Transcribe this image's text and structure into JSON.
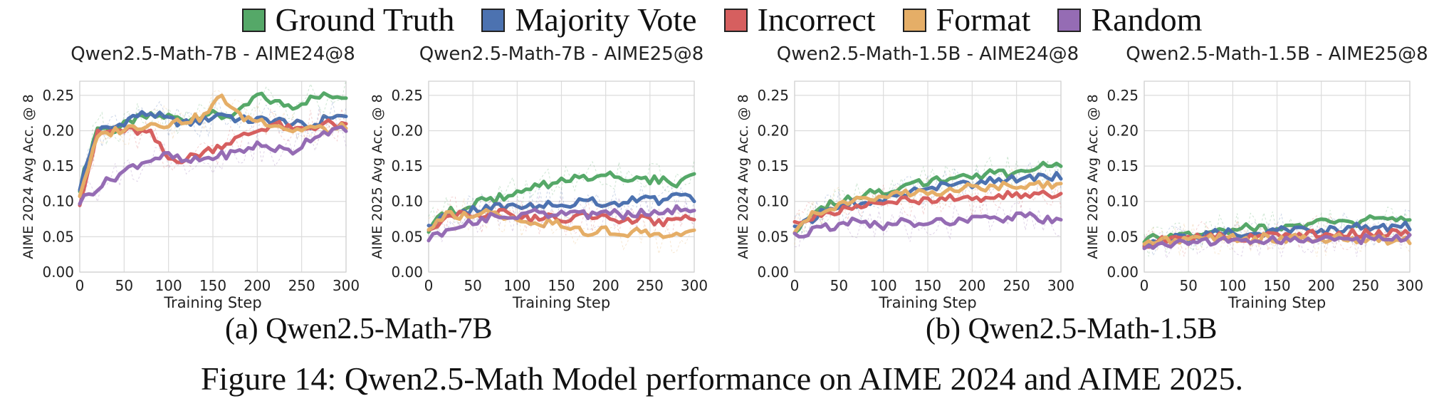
{
  "legend": [
    {
      "label": "Ground Truth",
      "color": "#55a868"
    },
    {
      "label": "Majority Vote",
      "color": "#4c72b0"
    },
    {
      "label": "Incorrect",
      "color": "#d65f5f"
    },
    {
      "label": "Format",
      "color": "#e5ae67"
    },
    {
      "label": "Random",
      "color": "#956cb4"
    }
  ],
  "subcaptions": {
    "a": "(a) Qwen2.5-Math-7B",
    "b": "(b) Qwen2.5-Math-1.5B"
  },
  "figure_caption": "Figure 14: Qwen2.5-Math Model performance on AIME 2024 and AIME 2025.",
  "chart_data": [
    {
      "type": "line",
      "title": "Qwen2.5-Math-7B - AIME24@8",
      "xlabel": "Training Step",
      "ylabel": "AIME 2024 Avg Acc. @ 8",
      "xlim": [
        0,
        300
      ],
      "ylim": [
        0,
        0.27
      ],
      "xticks": [
        0,
        50,
        100,
        150,
        200,
        250,
        300
      ],
      "yticks": [
        "0.00",
        "0.05",
        "0.10",
        "0.15",
        "0.20",
        "0.25"
      ],
      "grid": true,
      "x": [
        0,
        20,
        40,
        60,
        80,
        100,
        120,
        140,
        160,
        180,
        200,
        220,
        240,
        260,
        280,
        300
      ],
      "series": [
        {
          "name": "Ground Truth",
          "values": [
            0.12,
            0.205,
            0.2,
            0.215,
            0.22,
            0.22,
            0.215,
            0.225,
            0.22,
            0.225,
            0.25,
            0.24,
            0.235,
            0.245,
            0.25,
            0.25
          ]
        },
        {
          "name": "Majority Vote",
          "values": [
            0.12,
            0.2,
            0.205,
            0.22,
            0.225,
            0.215,
            0.21,
            0.215,
            0.225,
            0.215,
            0.215,
            0.215,
            0.21,
            0.205,
            0.22,
            0.22
          ]
        },
        {
          "name": "Incorrect",
          "values": [
            0.1,
            0.195,
            0.2,
            0.2,
            0.195,
            0.16,
            0.16,
            0.17,
            0.18,
            0.19,
            0.2,
            0.21,
            0.2,
            0.205,
            0.21,
            0.205
          ]
        },
        {
          "name": "Format",
          "values": [
            0.11,
            0.19,
            0.2,
            0.205,
            0.21,
            0.21,
            0.215,
            0.22,
            0.25,
            0.22,
            0.215,
            0.21,
            0.2,
            0.205,
            0.2,
            0.205
          ]
        },
        {
          "name": "Random",
          "values": [
            0.1,
            0.12,
            0.135,
            0.15,
            0.16,
            0.165,
            0.155,
            0.16,
            0.165,
            0.17,
            0.18,
            0.175,
            0.17,
            0.19,
            0.2,
            0.2
          ]
        }
      ]
    },
    {
      "type": "line",
      "title": "Qwen2.5-Math-7B - AIME25@8",
      "xlabel": "Training Step",
      "ylabel": "AIME 2025 Avg Acc. @ 8",
      "xlim": [
        0,
        300
      ],
      "ylim": [
        0,
        0.27
      ],
      "xticks": [
        0,
        50,
        100,
        150,
        200,
        250,
        300
      ],
      "yticks": [
        "0.00",
        "0.05",
        "0.10",
        "0.15",
        "0.20",
        "0.25"
      ],
      "grid": true,
      "x": [
        0,
        20,
        40,
        60,
        80,
        100,
        120,
        140,
        160,
        180,
        200,
        220,
        240,
        260,
        280,
        300
      ],
      "series": [
        {
          "name": "Ground Truth",
          "values": [
            0.06,
            0.085,
            0.09,
            0.1,
            0.105,
            0.11,
            0.12,
            0.125,
            0.13,
            0.135,
            0.14,
            0.135,
            0.13,
            0.13,
            0.125,
            0.135
          ]
        },
        {
          "name": "Majority Vote",
          "values": [
            0.06,
            0.08,
            0.085,
            0.09,
            0.095,
            0.09,
            0.095,
            0.1,
            0.095,
            0.1,
            0.095,
            0.1,
            0.105,
            0.1,
            0.11,
            0.1
          ]
        },
        {
          "name": "Incorrect",
          "values": [
            0.06,
            0.08,
            0.085,
            0.08,
            0.085,
            0.08,
            0.075,
            0.08,
            0.075,
            0.08,
            0.075,
            0.07,
            0.075,
            0.07,
            0.075,
            0.08
          ]
        },
        {
          "name": "Format",
          "values": [
            0.06,
            0.08,
            0.08,
            0.085,
            0.08,
            0.075,
            0.07,
            0.07,
            0.06,
            0.055,
            0.06,
            0.055,
            0.06,
            0.05,
            0.05,
            0.065
          ]
        },
        {
          "name": "Random",
          "values": [
            0.045,
            0.06,
            0.07,
            0.075,
            0.08,
            0.08,
            0.085,
            0.08,
            0.085,
            0.08,
            0.085,
            0.08,
            0.085,
            0.08,
            0.09,
            0.085
          ]
        }
      ]
    },
    {
      "type": "line",
      "title": "Qwen2.5-Math-1.5B - AIME24@8",
      "xlabel": "Training Step",
      "ylabel": "AIME 2024 Avg Acc. @ 8",
      "xlim": [
        0,
        300
      ],
      "ylim": [
        0,
        0.27
      ],
      "xticks": [
        0,
        50,
        100,
        150,
        200,
        250,
        300
      ],
      "yticks": [
        "0.00",
        "0.05",
        "0.10",
        "0.15",
        "0.20",
        "0.25"
      ],
      "grid": true,
      "x": [
        0,
        20,
        40,
        60,
        80,
        100,
        120,
        140,
        160,
        180,
        200,
        220,
        240,
        260,
        280,
        300
      ],
      "series": [
        {
          "name": "Ground Truth",
          "values": [
            0.06,
            0.08,
            0.095,
            0.105,
            0.11,
            0.115,
            0.12,
            0.125,
            0.13,
            0.13,
            0.135,
            0.14,
            0.14,
            0.145,
            0.15,
            0.15
          ]
        },
        {
          "name": "Majority Vote",
          "values": [
            0.06,
            0.075,
            0.09,
            0.095,
            0.1,
            0.105,
            0.11,
            0.115,
            0.12,
            0.125,
            0.125,
            0.13,
            0.13,
            0.135,
            0.135,
            0.135
          ]
        },
        {
          "name": "Incorrect",
          "values": [
            0.07,
            0.075,
            0.085,
            0.09,
            0.095,
            0.1,
            0.1,
            0.1,
            0.105,
            0.105,
            0.1,
            0.105,
            0.11,
            0.105,
            0.11,
            0.11
          ]
        },
        {
          "name": "Format",
          "values": [
            0.06,
            0.085,
            0.09,
            0.1,
            0.105,
            0.11,
            0.11,
            0.115,
            0.115,
            0.115,
            0.12,
            0.12,
            0.125,
            0.12,
            0.125,
            0.125
          ]
        },
        {
          "name": "Random",
          "values": [
            0.05,
            0.06,
            0.065,
            0.07,
            0.07,
            0.065,
            0.07,
            0.065,
            0.07,
            0.07,
            0.075,
            0.08,
            0.075,
            0.08,
            0.075,
            0.07
          ]
        }
      ]
    },
    {
      "type": "line",
      "title": "Qwen2.5-Math-1.5B - AIME25@8",
      "xlabel": "Training Step",
      "ylabel": "AIME 2025 Avg Acc. @ 8",
      "xlim": [
        0,
        300
      ],
      "ylim": [
        0,
        0.27
      ],
      "xticks": [
        0,
        50,
        100,
        150,
        200,
        250,
        300
      ],
      "yticks": [
        "0.00",
        "0.05",
        "0.10",
        "0.15",
        "0.20",
        "0.25"
      ],
      "grid": true,
      "x": [
        0,
        20,
        40,
        60,
        80,
        100,
        120,
        140,
        160,
        180,
        200,
        220,
        240,
        260,
        280,
        300
      ],
      "series": [
        {
          "name": "Ground Truth",
          "values": [
            0.045,
            0.05,
            0.055,
            0.055,
            0.06,
            0.06,
            0.065,
            0.06,
            0.065,
            0.065,
            0.07,
            0.07,
            0.07,
            0.075,
            0.075,
            0.07
          ]
        },
        {
          "name": "Majority Vote",
          "values": [
            0.04,
            0.045,
            0.05,
            0.05,
            0.055,
            0.055,
            0.055,
            0.055,
            0.06,
            0.06,
            0.06,
            0.06,
            0.065,
            0.06,
            0.065,
            0.065
          ]
        },
        {
          "name": "Incorrect",
          "values": [
            0.04,
            0.045,
            0.045,
            0.05,
            0.05,
            0.05,
            0.05,
            0.055,
            0.05,
            0.055,
            0.055,
            0.055,
            0.055,
            0.055,
            0.055,
            0.055
          ]
        },
        {
          "name": "Format",
          "values": [
            0.04,
            0.045,
            0.045,
            0.045,
            0.05,
            0.05,
            0.045,
            0.05,
            0.045,
            0.05,
            0.045,
            0.05,
            0.045,
            0.045,
            0.045,
            0.045
          ]
        },
        {
          "name": "Random",
          "values": [
            0.035,
            0.04,
            0.04,
            0.04,
            0.045,
            0.045,
            0.04,
            0.045,
            0.045,
            0.045,
            0.045,
            0.05,
            0.045,
            0.05,
            0.05,
            0.05
          ]
        }
      ]
    }
  ]
}
